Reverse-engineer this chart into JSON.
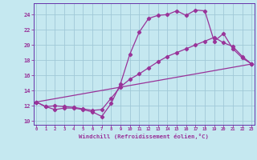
{
  "xlabel": "Windchill (Refroidissement éolien,°C)",
  "bg_color": "#c5e8f0",
  "grid_color": "#a0c8d8",
  "line_color": "#993399",
  "spine_color": "#6633aa",
  "x_ticks": [
    0,
    1,
    2,
    3,
    4,
    5,
    6,
    7,
    8,
    9,
    10,
    11,
    12,
    13,
    14,
    15,
    16,
    17,
    18,
    19,
    20,
    21,
    22,
    23
  ],
  "y_ticks": [
    10,
    12,
    14,
    16,
    18,
    20,
    22,
    24
  ],
  "xlim": [
    -0.3,
    23.3
  ],
  "ylim": [
    9.5,
    25.5
  ],
  "line1_x": [
    0,
    1,
    2,
    3,
    4,
    5,
    6,
    7,
    8,
    9,
    10,
    11,
    12,
    13,
    14,
    15,
    16,
    17,
    18,
    19,
    20,
    21,
    22,
    23
  ],
  "line1_y": [
    12.5,
    11.9,
    11.5,
    11.7,
    11.7,
    11.5,
    11.2,
    10.6,
    12.3,
    14.9,
    18.8,
    21.7,
    23.5,
    23.9,
    24.0,
    24.5,
    23.9,
    24.6,
    24.5,
    20.5,
    21.5,
    19.5,
    18.3,
    17.5
  ],
  "line2_x": [
    0,
    1,
    2,
    3,
    4,
    5,
    6,
    7,
    8,
    9,
    10,
    11,
    12,
    13,
    14,
    15,
    16,
    17,
    18,
    19,
    20,
    21,
    22,
    23
  ],
  "line2_y": [
    12.5,
    11.9,
    12.0,
    11.9,
    11.8,
    11.6,
    11.4,
    11.5,
    13.0,
    14.5,
    15.5,
    16.2,
    17.0,
    17.8,
    18.5,
    19.0,
    19.5,
    20.0,
    20.5,
    21.0,
    20.3,
    19.8,
    18.5,
    17.5
  ],
  "line3_x": [
    0,
    23
  ],
  "line3_y": [
    12.5,
    17.5
  ]
}
